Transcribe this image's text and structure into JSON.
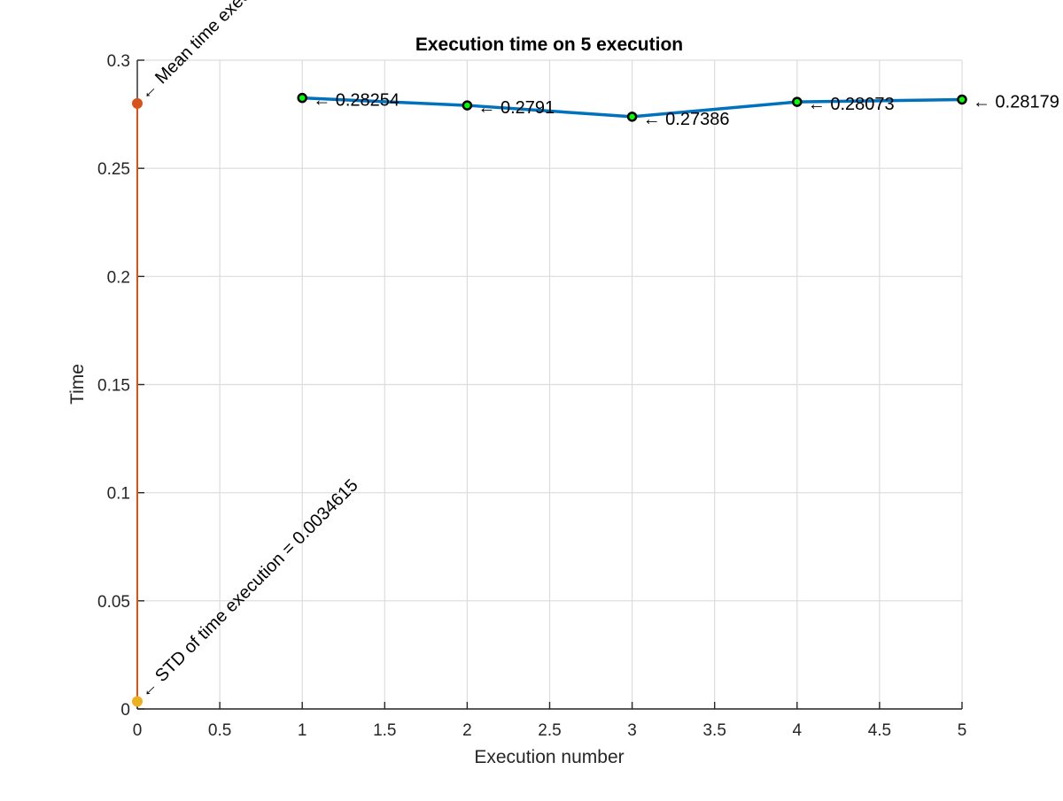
{
  "chart_data": {
    "type": "line",
    "title": "Execution time on 5 execution",
    "xlabel": "Execution number",
    "ylabel": "Time",
    "xlim": [
      0,
      5
    ],
    "ylim": [
      0,
      0.3
    ],
    "grid": true,
    "xticks": [
      0,
      0.5,
      1,
      1.5,
      2,
      2.5,
      3,
      3.5,
      4,
      4.5,
      5
    ],
    "xtick_labels": [
      "0",
      "0.5",
      "1",
      "1.5",
      "2",
      "2.5",
      "3",
      "3.5",
      "4",
      "4.5",
      "5"
    ],
    "yticks": [
      0,
      0.05,
      0.1,
      0.15,
      0.2,
      0.25,
      0.3
    ],
    "ytick_labels": [
      "0",
      "0.05",
      "0.1",
      "0.15",
      "0.2",
      "0.25",
      "0.3"
    ],
    "series": [
      {
        "x": [
          1,
          2,
          3,
          4,
          5
        ],
        "values": [
          0.28254,
          0.2791,
          0.27386,
          0.28073,
          0.28179
        ],
        "data_labels": [
          "← 0.28254",
          "← 0.2791",
          "← 0.27386",
          "← 0.28073",
          "← 0.28179"
        ],
        "color": "#0072bd",
        "marker_edge_color": "#000000",
        "marker_face_color": "#00ff00"
      }
    ],
    "vertical_line": {
      "x": 0,
      "from": 0.0034615,
      "to": 0.28,
      "color": "#d95319"
    },
    "special_points": [
      {
        "x": 0,
        "y": 0.28,
        "color": "#d95319",
        "label": "← Mean time execution"
      },
      {
        "x": 0,
        "y": 0.0034615,
        "color": "#edb120",
        "label": "← STD of time execution = 0.0034615"
      }
    ]
  }
}
